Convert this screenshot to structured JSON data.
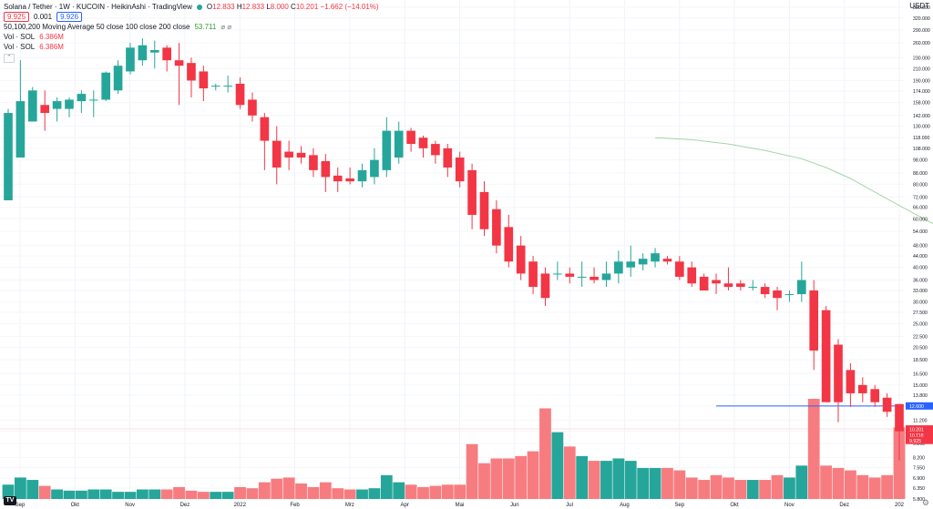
{
  "header": {
    "title": "Solana / Tether · 1W · KUCOIN · HeikinAshi · TradingView",
    "open_label": "O",
    "open": "12.833",
    "high_label": "H",
    "high": "12.833",
    "low_label": "L",
    "low": "8.000",
    "close_label": "C",
    "close": "10.201",
    "change": "−1.662 (−14.01%)",
    "bid": "9.925",
    "spread": "0.001",
    "ask": "9.926",
    "ma_label": "50,100,200 Moving Average 50 close 100 close 200 close",
    "ma_value": "53.711",
    "ma_icons": "⌀ ⌀",
    "vol1_label": "Vol · SOL",
    "vol1_value": "6.386M",
    "vol2_label": "Vol · SOL",
    "vol2_value": "6.386M",
    "collapse_icon": "chevron-up-icon",
    "collapse_glyph": "⌃"
  },
  "axis": {
    "unit": "USDT",
    "price_ticks": [
      "350.000",
      "320.000",
      "290.000",
      "260.000",
      "230.000",
      "210.000",
      "190.000",
      "174.000",
      "158.000",
      "142.000",
      "130.000",
      "118.000",
      "108.000",
      "98.000",
      "88.000",
      "80.000",
      "72.000",
      "66.000",
      "60.000",
      "54.000",
      "48.000",
      "44.000",
      "40.000",
      "36.000",
      "33.000",
      "30.000",
      "27.500",
      "25.000",
      "22.500",
      "20.500",
      "18.500",
      "16.500",
      "15.000",
      "13.800",
      "12.600",
      "11.200",
      "10.200",
      "9.200",
      "8.200",
      "7.550",
      "6.900",
      "6.350",
      "5.800"
    ],
    "time_labels": [
      "Sep",
      "Okt",
      "Nov",
      "Dez",
      "2022",
      "Feb",
      "Mrz",
      "Apr",
      "Mai",
      "Jun",
      "Jul",
      "Aug",
      "Sep",
      "Okt",
      "Nov",
      "Dez",
      "202"
    ],
    "price_tags": [
      {
        "label": "12.600",
        "color": "#2962ff",
        "price": 12.6
      },
      {
        "label": "10.201",
        "color": "#f23645",
        "price": 10.4
      },
      {
        "label": "10.118",
        "color": "#f23645",
        "price": 9.9
      },
      {
        "label": "9.925",
        "color": "#f23645",
        "price": 9.45
      }
    ]
  },
  "tools": {
    "logo": "TV",
    "settings_icon": "gear-icon",
    "settings_glyph": "⚙"
  },
  "chart_data": {
    "type": "candlestick",
    "title": "Solana / Tether · 1W · KUCOIN · HeikinAshi",
    "xlabel": "",
    "ylabel": "USDT",
    "ylim": [
      5.8,
      350
    ],
    "y_scale": "log",
    "colors": {
      "up": "#26a69a",
      "down": "#f23645",
      "vol_up": "#26a69a",
      "vol_down": "#f77c80",
      "ma": "#66bb6a",
      "hline": "#2962ff"
    },
    "horizontal_line": 12.6,
    "ma_series_label": "MA 200",
    "ma_points": [
      [
        53,
        118
      ],
      [
        56,
        116
      ],
      [
        59,
        112
      ],
      [
        62,
        106
      ],
      [
        65,
        99
      ],
      [
        67,
        92
      ],
      [
        69,
        84
      ],
      [
        71,
        75
      ],
      [
        73,
        67
      ],
      [
        75,
        60
      ],
      [
        77,
        54
      ]
    ],
    "candles": [
      {
        "o": 70,
        "h": 150,
        "l": 70,
        "c": 145,
        "v": 6
      },
      {
        "o": 100,
        "h": 225,
        "l": 100,
        "c": 160,
        "v": 9
      },
      {
        "o": 135,
        "h": 180,
        "l": 135,
        "c": 175,
        "v": 8
      },
      {
        "o": 155,
        "h": 175,
        "l": 125,
        "c": 145,
        "v": 5.5
      },
      {
        "o": 150,
        "h": 165,
        "l": 135,
        "c": 160,
        "v": 4
      },
      {
        "o": 150,
        "h": 165,
        "l": 140,
        "c": 162,
        "v": 3.5
      },
      {
        "o": 160,
        "h": 175,
        "l": 145,
        "c": 170,
        "v": 3.5
      },
      {
        "o": 162,
        "h": 175,
        "l": 140,
        "c": 162,
        "v": 4
      },
      {
        "o": 162,
        "h": 205,
        "l": 160,
        "c": 203,
        "v": 4
      },
      {
        "o": 175,
        "h": 225,
        "l": 170,
        "c": 215,
        "v": 3
      },
      {
        "o": 205,
        "h": 260,
        "l": 200,
        "c": 250,
        "v": 3
      },
      {
        "o": 225,
        "h": 270,
        "l": 215,
        "c": 255,
        "v": 4
      },
      {
        "o": 240,
        "h": 265,
        "l": 210,
        "c": 245,
        "v": 4
      },
      {
        "o": 250,
        "h": 255,
        "l": 205,
        "c": 225,
        "v": 4
      },
      {
        "o": 225,
        "h": 260,
        "l": 155,
        "c": 215,
        "v": 5
      },
      {
        "o": 220,
        "h": 230,
        "l": 165,
        "c": 190,
        "v": 3.5
      },
      {
        "o": 205,
        "h": 215,
        "l": 160,
        "c": 178,
        "v": 3
      },
      {
        "o": 182,
        "h": 185,
        "l": 175,
        "c": 182,
        "v": 3
      },
      {
        "o": 182,
        "h": 198,
        "l": 172,
        "c": 182,
        "v": 3
      },
      {
        "o": 185,
        "h": 195,
        "l": 150,
        "c": 155,
        "v": 5
      },
      {
        "o": 162,
        "h": 172,
        "l": 135,
        "c": 142,
        "v": 4.5
      },
      {
        "o": 140,
        "h": 145,
        "l": 90,
        "c": 115,
        "v": 7
      },
      {
        "o": 115,
        "h": 130,
        "l": 80,
        "c": 92,
        "v": 8.5
      },
      {
        "o": 105,
        "h": 115,
        "l": 90,
        "c": 100,
        "v": 9
      },
      {
        "o": 104,
        "h": 110,
        "l": 95,
        "c": 100,
        "v": 6.5
      },
      {
        "o": 102,
        "h": 108,
        "l": 85,
        "c": 90,
        "v": 5
      },
      {
        "o": 97,
        "h": 103,
        "l": 75,
        "c": 85,
        "v": 7
      },
      {
        "o": 86,
        "h": 92,
        "l": 75,
        "c": 82,
        "v": 4.5
      },
      {
        "o": 84,
        "h": 92,
        "l": 80,
        "c": 82,
        "v": 4
      },
      {
        "o": 82,
        "h": 95,
        "l": 78,
        "c": 90,
        "v": 4
      },
      {
        "o": 85,
        "h": 108,
        "l": 80,
        "c": 98,
        "v": 4.5
      },
      {
        "o": 90,
        "h": 140,
        "l": 85,
        "c": 125,
        "v": 10
      },
      {
        "o": 100,
        "h": 135,
        "l": 95,
        "c": 125,
        "v": 7
      },
      {
        "o": 125,
        "h": 128,
        "l": 105,
        "c": 112,
        "v": 6
      },
      {
        "o": 118,
        "h": 120,
        "l": 100,
        "c": 108,
        "v": 5
      },
      {
        "o": 112,
        "h": 115,
        "l": 95,
        "c": 102,
        "v": 5.5
      },
      {
        "o": 108,
        "h": 112,
        "l": 85,
        "c": 92,
        "v": 6
      },
      {
        "o": 100,
        "h": 105,
        "l": 78,
        "c": 82,
        "v": 6
      },
      {
        "o": 90,
        "h": 95,
        "l": 55,
        "c": 62,
        "v": 23
      },
      {
        "o": 75,
        "h": 82,
        "l": 52,
        "c": 55,
        "v": 15
      },
      {
        "o": 65,
        "h": 70,
        "l": 45,
        "c": 48,
        "v": 17
      },
      {
        "o": 56,
        "h": 62,
        "l": 40,
        "c": 42,
        "v": 17
      },
      {
        "o": 48,
        "h": 52,
        "l": 36,
        "c": 38,
        "v": 18
      },
      {
        "o": 42,
        "h": 44,
        "l": 32,
        "c": 34,
        "v": 20
      },
      {
        "o": 38,
        "h": 40,
        "l": 29,
        "c": 31,
        "v": 38
      },
      {
        "o": 38,
        "h": 42,
        "l": 36,
        "c": 38,
        "v": 28
      },
      {
        "o": 38,
        "h": 40,
        "l": 35,
        "c": 37,
        "v": 22
      },
      {
        "o": 37,
        "h": 42,
        "l": 34,
        "c": 37,
        "v": 18
      },
      {
        "o": 37,
        "h": 40,
        "l": 35,
        "c": 36,
        "v": 16
      },
      {
        "o": 36,
        "h": 42,
        "l": 34,
        "c": 38,
        "v": 16
      },
      {
        "o": 38,
        "h": 46,
        "l": 35,
        "c": 42,
        "v": 17
      },
      {
        "o": 40,
        "h": 48,
        "l": 37,
        "c": 42,
        "v": 16
      },
      {
        "o": 41,
        "h": 45,
        "l": 39,
        "c": 43,
        "v": 13
      },
      {
        "o": 42,
        "h": 47,
        "l": 40,
        "c": 45,
        "v": 13
      },
      {
        "o": 43,
        "h": 44,
        "l": 41,
        "c": 42,
        "v": 13
      },
      {
        "o": 42,
        "h": 44,
        "l": 36,
        "c": 37,
        "v": 12
      },
      {
        "o": 40,
        "h": 42,
        "l": 34,
        "c": 35,
        "v": 9
      },
      {
        "o": 37,
        "h": 38,
        "l": 33,
        "c": 33,
        "v": 8
      },
      {
        "o": 36,
        "h": 38,
        "l": 32,
        "c": 35,
        "v": 10
      },
      {
        "o": 35,
        "h": 40,
        "l": 33,
        "c": 34,
        "v": 9
      },
      {
        "o": 35,
        "h": 36,
        "l": 33,
        "c": 34,
        "v": 8
      },
      {
        "o": 34,
        "h": 36,
        "l": 33,
        "c": 34,
        "v": 8
      },
      {
        "o": 34,
        "h": 35,
        "l": 31,
        "c": 32,
        "v": 8
      },
      {
        "o": 33,
        "h": 34,
        "l": 28,
        "c": 31,
        "v": 10
      },
      {
        "o": 32,
        "h": 33,
        "l": 30,
        "c": 32,
        "v": 9
      },
      {
        "o": 32,
        "h": 42,
        "l": 30,
        "c": 36,
        "v": 14
      },
      {
        "o": 33,
        "h": 36,
        "l": 17,
        "c": 20,
        "v": 42
      },
      {
        "o": 28,
        "h": 29,
        "l": 13,
        "c": 13,
        "v": 14
      },
      {
        "o": 21,
        "h": 22,
        "l": 11,
        "c": 13,
        "v": 13
      },
      {
        "o": 17,
        "h": 18,
        "l": 12.5,
        "c": 14,
        "v": 12
      },
      {
        "o": 15,
        "h": 16,
        "l": 13,
        "c": 14,
        "v": 10
      },
      {
        "o": 14.5,
        "h": 15,
        "l": 12.5,
        "c": 13,
        "v": 9
      },
      {
        "o": 13.5,
        "h": 14,
        "l": 11.5,
        "c": 12,
        "v": 10
      },
      {
        "o": 12.8,
        "h": 12.8,
        "l": 8,
        "c": 10.2,
        "v": 30
      }
    ]
  }
}
